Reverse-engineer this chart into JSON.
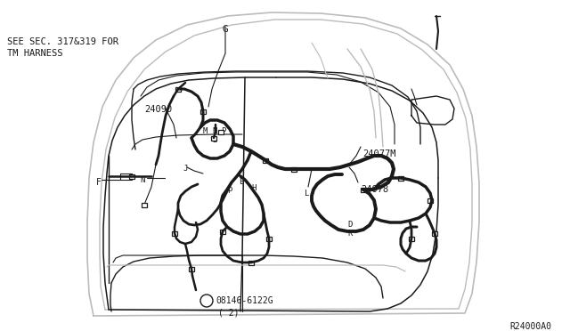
{
  "bg_color": "#ffffff",
  "line_color": "#1a1a1a",
  "gray_color": "#999999",
  "light_gray": "#bbbbbb",
  "fig_width": 6.4,
  "fig_height": 3.72,
  "dpi": 100,
  "title_ref": "R24000A0",
  "part_number_circle": "B",
  "part_number": "08146-6122G",
  "part_qty": "( 2)",
  "label_24090": "24090",
  "label_24077M": "24077M",
  "label_24078": "24078",
  "label_see_sec": "SEE SEC. 317&319 FOR",
  "label_tm": "TM HARNESS"
}
